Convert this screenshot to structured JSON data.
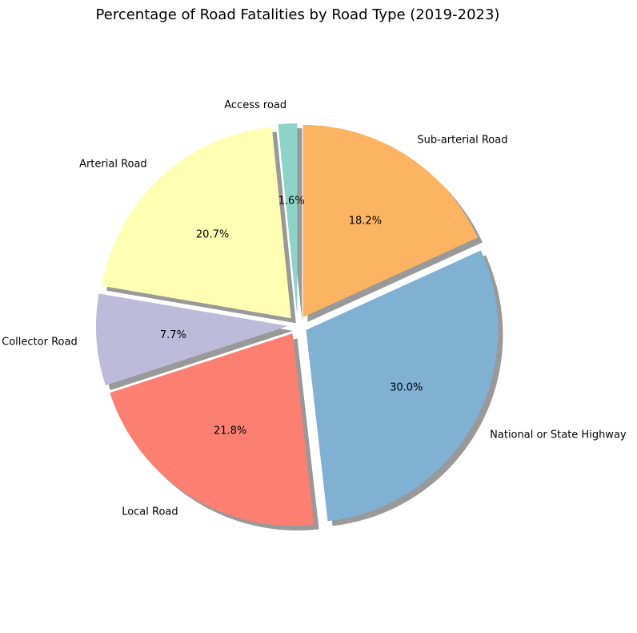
{
  "chart_data": {
    "type": "pie",
    "title": "Percentage of Road Fatalities by Road Type (2019-2023)",
    "slices": [
      {
        "label": "Access road",
        "value": 1.6,
        "pct_label": "1.6%",
        "color": "#8dd3c7"
      },
      {
        "label": "Arterial Road",
        "value": 20.7,
        "pct_label": "20.7%",
        "color": "#ffffb3"
      },
      {
        "label": "Collector Road",
        "value": 7.7,
        "pct_label": "7.7%",
        "color": "#bebada"
      },
      {
        "label": "Local Road",
        "value": 21.8,
        "pct_label": "21.8%",
        "color": "#fb8072"
      },
      {
        "label": "National or State Highway",
        "value": 30.0,
        "pct_label": "30.0%",
        "color": "#80b1d3"
      },
      {
        "label": "Sub-arterial Road",
        "value": 18.2,
        "pct_label": "18.2%",
        "color": "#fdb462"
      }
    ],
    "start_angle_deg": 90,
    "direction": "counterclockwise",
    "shadow": true,
    "exploded": true
  }
}
